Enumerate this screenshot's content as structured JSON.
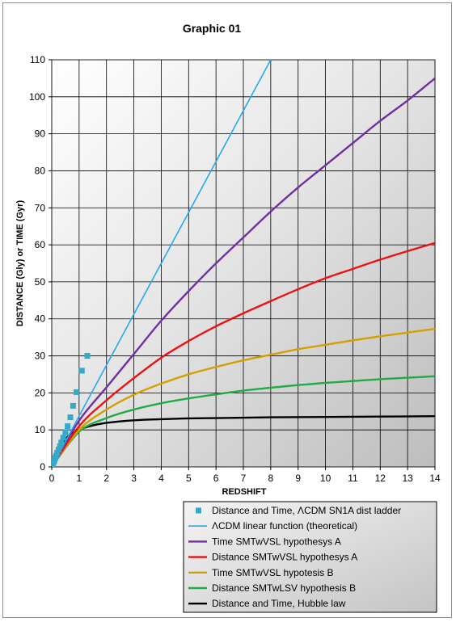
{
  "chart_data": {
    "type": "line",
    "title": "Graphic 01",
    "xlabel": "REDSHIFT",
    "ylabel": "DISTANCE (Gly) or TIME (Gyr)",
    "xlim": [
      0,
      14
    ],
    "ylim": [
      0,
      110
    ],
    "xticks": [
      "0",
      "1",
      "2",
      "3",
      "4",
      "5",
      "6",
      "7",
      "8",
      "9",
      "10",
      "11",
      "12",
      "13",
      "14"
    ],
    "yticks": [
      "0",
      "10",
      "20",
      "30",
      "40",
      "50",
      "60",
      "70",
      "80",
      "90",
      "100",
      "110"
    ],
    "grid": true,
    "legend_position": "bottom-right",
    "series": [
      {
        "name": "Distance and Time, ΛCDM SN1A dist ladder",
        "kind": "scatter",
        "color": "#33aacc",
        "x": [
          0.01,
          0.03,
          0.05,
          0.08,
          0.1,
          0.13,
          0.16,
          0.2,
          0.25,
          0.3,
          0.35,
          0.42,
          0.5,
          0.58,
          0.68,
          0.78,
          0.9,
          1.1,
          1.3
        ],
        "y": [
          0.2,
          0.5,
          1.0,
          1.4,
          1.8,
          2.4,
          3.0,
          3.8,
          4.7,
          5.6,
          6.6,
          7.9,
          9.3,
          11.0,
          13.4,
          16.5,
          20.2,
          26.0,
          30.0
        ]
      },
      {
        "name": "ΛCDM linear function (theoretical)",
        "kind": "line",
        "color": "#22aaee",
        "x": [
          0,
          2,
          4,
          6,
          8
        ],
        "y": [
          0,
          27.5,
          55,
          82.5,
          110
        ]
      },
      {
        "name": "Time SMTwVSL hypothesys A",
        "kind": "line",
        "color": "#7030a0",
        "x": [
          0,
          1,
          2,
          3,
          4,
          5,
          6,
          7,
          8,
          9,
          10,
          11,
          12,
          13,
          14
        ],
        "y": [
          0,
          12.5,
          21.5,
          30.5,
          39.5,
          47.5,
          55,
          62,
          69,
          75.5,
          81.5,
          87.5,
          93.5,
          99,
          105
        ]
      },
      {
        "name": "Distance SMTwVSL hypothesys A",
        "kind": "line",
        "color": "#ee1111",
        "x": [
          0,
          1,
          2,
          3,
          4,
          5,
          6,
          7,
          8,
          9,
          10,
          11,
          12,
          13,
          14
        ],
        "y": [
          0,
          11,
          18,
          24,
          29.5,
          34,
          38,
          41.5,
          44.8,
          48,
          51,
          53.5,
          56,
          58.3,
          60.5
        ]
      },
      {
        "name": "Time SMTwVSL hypotesis B",
        "kind": "line",
        "color": "#d4a000",
        "x": [
          0,
          1,
          2,
          3,
          4,
          5,
          6,
          7,
          8,
          9,
          10,
          11,
          12,
          13,
          14
        ],
        "y": [
          0,
          10,
          15.5,
          19.5,
          22.5,
          25,
          27,
          28.8,
          30.3,
          31.8,
          33,
          34.2,
          35.3,
          36.3,
          37.3
        ]
      },
      {
        "name": "Distance SMTwLSV hypothesis B",
        "kind": "line",
        "color": "#22aa44",
        "x": [
          0,
          1,
          2,
          3,
          4,
          5,
          6,
          7,
          8,
          9,
          10,
          11,
          12,
          13,
          14
        ],
        "y": [
          0,
          9.5,
          13.2,
          15.5,
          17.2,
          18.5,
          19.6,
          20.6,
          21.4,
          22.1,
          22.7,
          23.2,
          23.7,
          24.1,
          24.5
        ]
      },
      {
        "name": "Distance and Time, Hubble law",
        "kind": "line",
        "color": "#000000",
        "x": [
          0,
          0.5,
          1,
          1.5,
          2,
          3,
          4,
          5,
          6,
          8,
          10,
          12,
          14
        ],
        "y": [
          0,
          7.5,
          10,
          11.2,
          11.9,
          12.6,
          12.9,
          13.1,
          13.2,
          13.4,
          13.5,
          13.6,
          13.7
        ]
      }
    ]
  }
}
